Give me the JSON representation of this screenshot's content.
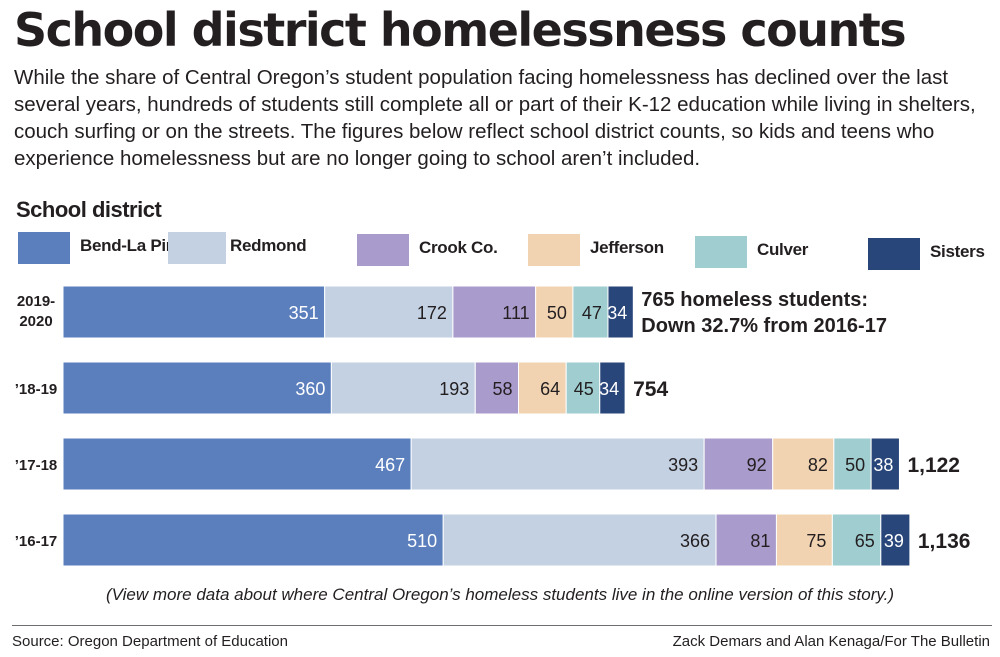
{
  "title": "School district homelessness counts",
  "subtitle": "While the share of Central Oregon’s student population facing homelessness has declined over the last several years, hundreds of students still complete all or part of their K-12 education while living in shelters, couch surfing or on the streets. The figures below reflect school district counts, so kids and teens who experience homelessness but are no longer going to school aren’t included.",
  "note": "(View more data about where Central Oregon’s homeless students live in the online version of this story.)",
  "source": "Source: Oregon Department of Education",
  "credit": "Zack Demars and Alan Kenaga/For The Bulletin",
  "chart_data": {
    "type": "bar",
    "stacked": true,
    "orientation": "horizontal",
    "legend_title": "School district",
    "legend_placement": "top",
    "categories": [
      "2019-2020",
      "’18-19",
      "’17-18",
      "’16-17"
    ],
    "series": [
      {
        "name": "Bend-La Pine",
        "color": "#5b7fbc",
        "values": [
          351,
          360,
          467,
          510
        ]
      },
      {
        "name": "Redmond",
        "color": "#c3d1e3",
        "values": [
          172,
          193,
          393,
          366
        ]
      },
      {
        "name": "Crook Co.",
        "color": "#a99bcb",
        "values": [
          111,
          58,
          92,
          81
        ]
      },
      {
        "name": "Jefferson",
        "color": "#f1d3b2",
        "values": [
          50,
          64,
          82,
          75
        ]
      },
      {
        "name": "Culver",
        "color": "#9fcdd0",
        "values": [
          47,
          45,
          50,
          65
        ]
      },
      {
        "name": "Sisters",
        "color": "#28467a",
        "values": [
          34,
          34,
          38,
          39
        ]
      }
    ],
    "totals": [
      {
        "line1": "765 homeless students:",
        "line2": "Down 32.7% from 2016-17"
      },
      {
        "line1": "754",
        "line2": ""
      },
      {
        "line1": "1,122",
        "line2": ""
      },
      {
        "line1": "1,136",
        "line2": ""
      }
    ],
    "grid": false
  }
}
